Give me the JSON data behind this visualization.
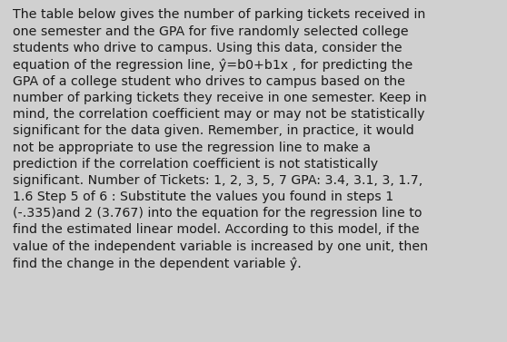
{
  "background_color": "#d0d0d0",
  "text_color": "#1a1a1a",
  "font_size": 10.2,
  "font_family": "DejaVu Sans",
  "text": "The table below gives the number of parking tickets received in one semester and the GPA for five randomly selected college students who drive to campus. Using this data, consider the equation of the regression line, ŷ=b0+b1x , for predicting the GPA of a college student who drives to campus based on the number of parking tickets they receive in one semester. Keep in mind, the correlation coefficient may or may not be statistically significant for the data given. Remember, in practice, it would not be appropriate to use the regression line to make a prediction if the correlation coefficient is not statistically significant. Number of Tickets: 1, 2, 3, 5, 7 GPA: 3.4, 3.1, 3, 1.7, 1.6 Step 5 of 6 : Substitute the values you found in steps 1 (-.335)and 2 (3.767) into the equation for the regression line to find the estimated linear model. According to this model, if the value of the independent variable is increased by one unit, then find the change in the dependent variable ŷ.",
  "lines": [
    "The table below gives the number of parking tickets received in",
    "one semester and the GPA for five randomly selected college",
    "students who drive to campus. Using this data, consider the",
    "equation of the regression line, ŷ=b0+b1x , for predicting the",
    "GPA of a college student who drives to campus based on the",
    "number of parking tickets they receive in one semester. Keep in",
    "mind, the correlation coefficient may or may not be statistically",
    "significant for the data given. Remember, in practice, it would",
    "not be appropriate to use the regression line to make a",
    "prediction if the correlation coefficient is not statistically",
    "significant. Number of Tickets: 1, 2, 3, 5, 7 GPA: 3.4, 3.1, 3, 1.7,",
    "1.6 Step 5 of 6 : Substitute the values you found in steps 1",
    "(-.335)and 2 (3.767) into the equation for the regression line to",
    "find the estimated linear model. According to this model, if the",
    "value of the independent variable is increased by one unit, then",
    "find the change in the dependent variable ŷ."
  ]
}
